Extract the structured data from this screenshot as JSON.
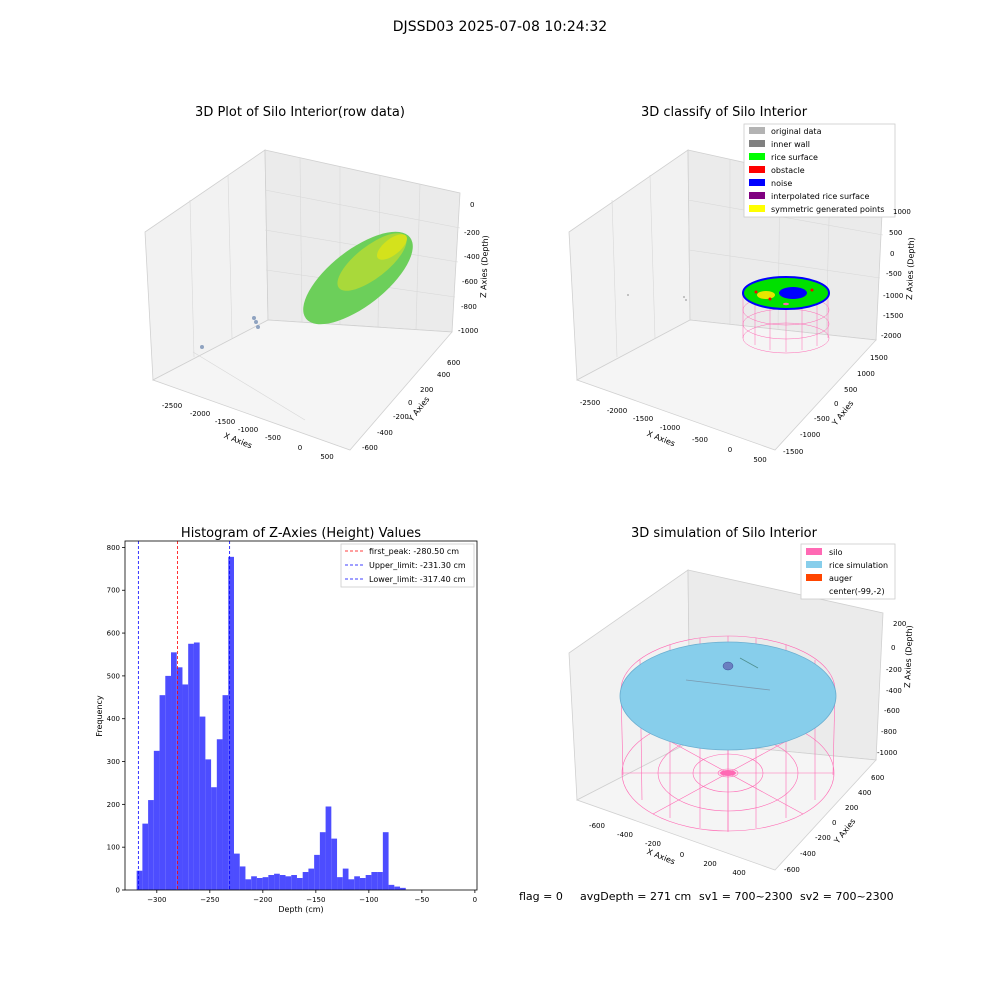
{
  "suptitle": "DJSSD03 2025-07-08 10:24:32",
  "panels": {
    "raw": {
      "title": "3D Plot of Silo Interior(row data)",
      "xlabel": "X Axies",
      "ylabel": "Y Axies",
      "zlabel": "Z Axies (Depth)",
      "xticks": [
        "-2500",
        "-2000",
        "-1500",
        "-1000",
        "-500",
        "0",
        "500"
      ],
      "yticks": [
        "600",
        "400",
        "200",
        "0",
        "-200",
        "-400",
        "-600"
      ],
      "zticks": [
        "0",
        "-200",
        "-400",
        "-600",
        "-800",
        "-1000"
      ]
    },
    "classify": {
      "title": "3D classify of Silo Interior",
      "xlabel": "X Axies",
      "ylabel": "Y Axies",
      "zlabel": "Z Axies (Depth)",
      "xticks": [
        "-2500",
        "-2000",
        "-1500",
        "-1000",
        "-500",
        "0",
        "500"
      ],
      "yticks": [
        "1500",
        "1000",
        "500",
        "0",
        "-500",
        "-1000",
        "-1500"
      ],
      "zticks": [
        "1000",
        "500",
        "0",
        "-500",
        "-1000",
        "-1500",
        "-2000"
      ],
      "legend": [
        {
          "label": "original data",
          "color": "#b3b3b3"
        },
        {
          "label": "inner wall",
          "color": "#808080"
        },
        {
          "label": "rice surface",
          "color": "#00ff00"
        },
        {
          "label": "obstacle",
          "color": "#ff0000"
        },
        {
          "label": "noise",
          "color": "#0000ff"
        },
        {
          "label": "interpolated rice surface",
          "color": "#800080"
        },
        {
          "label": "symmetric generated points",
          "color": "#ffff00"
        }
      ]
    },
    "simulation": {
      "title": "3D simulation of Silo Interior",
      "xlabel": "X Axies",
      "ylabel": "Y Axies",
      "zlabel": "Z Axies (Depth)",
      "xticks": [
        "-600",
        "-400",
        "-200",
        "0",
        "200",
        "400"
      ],
      "yticks": [
        "600",
        "400",
        "200",
        "0",
        "-200",
        "-400",
        "-600"
      ],
      "zticks": [
        "200",
        "0",
        "-200",
        "-400",
        "-600",
        "-800",
        "-1000"
      ],
      "legend": [
        {
          "label": "silo",
          "color": "#ff69b4"
        },
        {
          "label": "rice simulation",
          "color": "#87ceeb"
        },
        {
          "label": "auger",
          "color": "#ff4500"
        },
        {
          "label": "center(-99,-2)",
          "color": ""
        }
      ]
    }
  },
  "status": {
    "flag": "flag = 0",
    "avg": "avgDepth = 271 cm",
    "sv1": "sv1 = 700~2300",
    "sv2": "sv2 = 700~2300"
  },
  "chart_data": {
    "type": "bar",
    "title": "Histogram of Z-Axies (Height) Values",
    "xlabel": "Depth (cm)",
    "ylabel": "Frequency",
    "xlim": [
      -330,
      2
    ],
    "ylim": [
      0,
      815
    ],
    "xticks": [
      -300,
      -250,
      -200,
      -150,
      -100,
      -50,
      0
    ],
    "yticks": [
      0,
      100,
      200,
      300,
      400,
      500,
      600,
      700,
      800
    ],
    "bin_start": -319,
    "bin_width": 5.4,
    "values": [
      45,
      155,
      210,
      325,
      455,
      500,
      555,
      520,
      480,
      575,
      578,
      405,
      305,
      240,
      352,
      455,
      778,
      85,
      55,
      25,
      32,
      28,
      30,
      35,
      38,
      35,
      32,
      35,
      28,
      42,
      50,
      82,
      135,
      195,
      120,
      30,
      50,
      25,
      32,
      28,
      35,
      42,
      42,
      135,
      12,
      8,
      5
    ],
    "vlines": [
      {
        "label": "first_peak: -280.50 cm",
        "x": -280.5,
        "color": "#ff0000"
      },
      {
        "label": "Upper_limit: -231.30 cm",
        "x": -231.3,
        "color": "#0000ff"
      },
      {
        "label": "Lower_limit: -317.40 cm",
        "x": -317.4,
        "color": "#0000ff"
      }
    ]
  }
}
